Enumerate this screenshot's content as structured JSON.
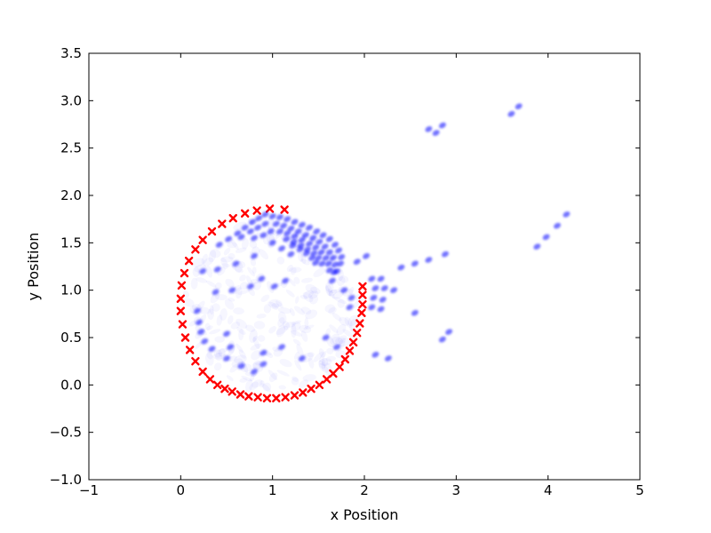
{
  "chart_data": {
    "type": "scatter",
    "title": "",
    "xlabel": "x Position",
    "ylabel": "y Position",
    "xlim": [
      -1,
      5
    ],
    "ylim": [
      -1.0,
      3.5
    ],
    "xticks": [
      "-1",
      "0",
      "1",
      "2",
      "3",
      "4",
      "5"
    ],
    "yticks": [
      "-1.0",
      "-0.5",
      "0.0",
      "0.5",
      "1.0",
      "1.5",
      "2.0",
      "2.5",
      "3.0",
      "3.5"
    ],
    "grid": false,
    "legend": "none",
    "series": [
      {
        "marker": "x",
        "color": "#ff0000",
        "points": [
          [
            1.13,
            1.85
          ],
          [
            0.97,
            1.86
          ],
          [
            0.83,
            1.84
          ],
          [
            0.7,
            1.81
          ],
          [
            0.57,
            1.76
          ],
          [
            0.45,
            1.7
          ],
          [
            0.34,
            1.62
          ],
          [
            0.24,
            1.53
          ],
          [
            0.16,
            1.43
          ],
          [
            0.09,
            1.31
          ],
          [
            0.04,
            1.18
          ],
          [
            0.01,
            1.05
          ],
          [
            0.0,
            0.91
          ],
          [
            0.0,
            0.78
          ],
          [
            0.02,
            0.64
          ],
          [
            0.05,
            0.5
          ],
          [
            0.1,
            0.37
          ],
          [
            0.16,
            0.25
          ],
          [
            0.24,
            0.14
          ],
          [
            0.32,
            0.06
          ],
          [
            0.4,
            0.0
          ],
          [
            0.48,
            -0.04
          ],
          [
            0.56,
            -0.07
          ],
          [
            0.65,
            -0.1
          ],
          [
            0.74,
            -0.12
          ],
          [
            0.84,
            -0.13
          ],
          [
            0.94,
            -0.14
          ],
          [
            1.04,
            -0.14
          ],
          [
            1.14,
            -0.13
          ],
          [
            1.24,
            -0.11
          ],
          [
            1.33,
            -0.08
          ],
          [
            1.42,
            -0.04
          ],
          [
            1.51,
            0.0
          ],
          [
            1.59,
            0.06
          ],
          [
            1.66,
            0.12
          ],
          [
            1.73,
            0.19
          ],
          [
            1.79,
            0.27
          ],
          [
            1.84,
            0.36
          ],
          [
            1.88,
            0.45
          ],
          [
            1.92,
            0.55
          ],
          [
            1.95,
            0.65
          ],
          [
            1.97,
            0.76
          ],
          [
            1.98,
            0.85
          ],
          [
            1.98,
            0.95
          ],
          [
            1.98,
            1.04
          ]
        ]
      },
      {
        "marker": "o",
        "color": "#0000ff",
        "points": [
          [
            1.0,
            1.78
          ],
          [
            1.08,
            1.77
          ],
          [
            1.16,
            1.75
          ],
          [
            1.24,
            1.72
          ],
          [
            1.32,
            1.69
          ],
          [
            1.4,
            1.66
          ],
          [
            1.48,
            1.62
          ],
          [
            1.55,
            1.58
          ],
          [
            1.62,
            1.54
          ],
          [
            1.68,
            1.48
          ],
          [
            1.72,
            1.42
          ],
          [
            1.75,
            1.35
          ],
          [
            1.74,
            1.28
          ],
          [
            1.7,
            1.2
          ],
          [
            1.65,
            1.1
          ],
          [
            1.04,
            1.7
          ],
          [
            1.12,
            1.68
          ],
          [
            1.2,
            1.65
          ],
          [
            1.28,
            1.62
          ],
          [
            1.36,
            1.58
          ],
          [
            1.44,
            1.55
          ],
          [
            1.51,
            1.51
          ],
          [
            1.57,
            1.46
          ],
          [
            1.62,
            1.4
          ],
          [
            1.66,
            1.34
          ],
          [
            1.68,
            1.27
          ],
          [
            1.67,
            1.19
          ],
          [
            1.08,
            1.62
          ],
          [
            1.16,
            1.6
          ],
          [
            1.24,
            1.57
          ],
          [
            1.32,
            1.53
          ],
          [
            1.4,
            1.49
          ],
          [
            1.47,
            1.45
          ],
          [
            1.53,
            1.4
          ],
          [
            1.58,
            1.34
          ],
          [
            1.61,
            1.28
          ],
          [
            1.62,
            1.21
          ],
          [
            1.15,
            1.54
          ],
          [
            1.23,
            1.51
          ],
          [
            1.31,
            1.47
          ],
          [
            1.38,
            1.43
          ],
          [
            1.45,
            1.39
          ],
          [
            1.5,
            1.34
          ],
          [
            1.54,
            1.28
          ],
          [
            1.22,
            1.47
          ],
          [
            1.3,
            1.43
          ],
          [
            1.37,
            1.39
          ],
          [
            1.43,
            1.34
          ],
          [
            1.47,
            1.29
          ],
          [
            0.92,
            1.8
          ],
          [
            0.85,
            1.76
          ],
          [
            0.78,
            1.72
          ],
          [
            0.7,
            1.66
          ],
          [
            0.62,
            1.6
          ],
          [
            0.52,
            1.54
          ],
          [
            0.42,
            1.48
          ],
          [
            0.92,
            1.7
          ],
          [
            0.84,
            1.66
          ],
          [
            0.76,
            1.62
          ],
          [
            0.66,
            1.56
          ],
          [
            0.98,
            1.62
          ],
          [
            0.9,
            1.58
          ],
          [
            0.8,
            1.55
          ],
          [
            1.0,
            1.5
          ],
          [
            1.1,
            1.44
          ],
          [
            1.2,
            1.38
          ],
          [
            0.8,
            1.36
          ],
          [
            0.6,
            1.28
          ],
          [
            0.4,
            1.22
          ],
          [
            0.24,
            1.2
          ],
          [
            0.88,
            1.12
          ],
          [
            0.76,
            1.04
          ],
          [
            0.56,
            1.0
          ],
          [
            0.38,
            0.98
          ],
          [
            1.02,
            1.04
          ],
          [
            1.14,
            1.1
          ],
          [
            2.08,
            1.12
          ],
          [
            2.18,
            1.12
          ],
          [
            2.12,
            1.02
          ],
          [
            2.22,
            1.02
          ],
          [
            2.32,
            1.0
          ],
          [
            2.1,
            0.92
          ],
          [
            2.2,
            0.9
          ],
          [
            2.08,
            0.82
          ],
          [
            2.18,
            0.8
          ],
          [
            2.55,
            0.76
          ],
          [
            1.78,
            1.0
          ],
          [
            1.86,
            0.92
          ],
          [
            1.84,
            0.82
          ],
          [
            2.4,
            1.24
          ],
          [
            2.55,
            1.28
          ],
          [
            2.7,
            1.32
          ],
          [
            2.88,
            1.38
          ],
          [
            1.92,
            1.3
          ],
          [
            2.02,
            1.36
          ],
          [
            0.18,
            0.78
          ],
          [
            0.2,
            0.66
          ],
          [
            0.22,
            0.56
          ],
          [
            0.26,
            0.46
          ],
          [
            0.34,
            0.38
          ],
          [
            0.5,
            0.54
          ],
          [
            0.54,
            0.4
          ],
          [
            0.5,
            0.28
          ],
          [
            0.66,
            0.2
          ],
          [
            0.8,
            0.14
          ],
          [
            0.9,
            0.34
          ],
          [
            0.9,
            0.22
          ],
          [
            1.32,
            0.28
          ],
          [
            1.1,
            0.4
          ],
          [
            1.58,
            0.5
          ],
          [
            1.7,
            0.4
          ],
          [
            2.12,
            0.32
          ],
          [
            2.26,
            0.28
          ],
          [
            2.85,
            0.48
          ],
          [
            2.92,
            0.56
          ],
          [
            2.7,
            2.7
          ],
          [
            2.78,
            2.66
          ],
          [
            2.85,
            2.74
          ],
          [
            3.6,
            2.86
          ],
          [
            3.68,
            2.94
          ],
          [
            3.88,
            1.46
          ],
          [
            3.98,
            1.56
          ],
          [
            4.1,
            1.68
          ],
          [
            4.2,
            1.8
          ]
        ]
      }
    ]
  }
}
